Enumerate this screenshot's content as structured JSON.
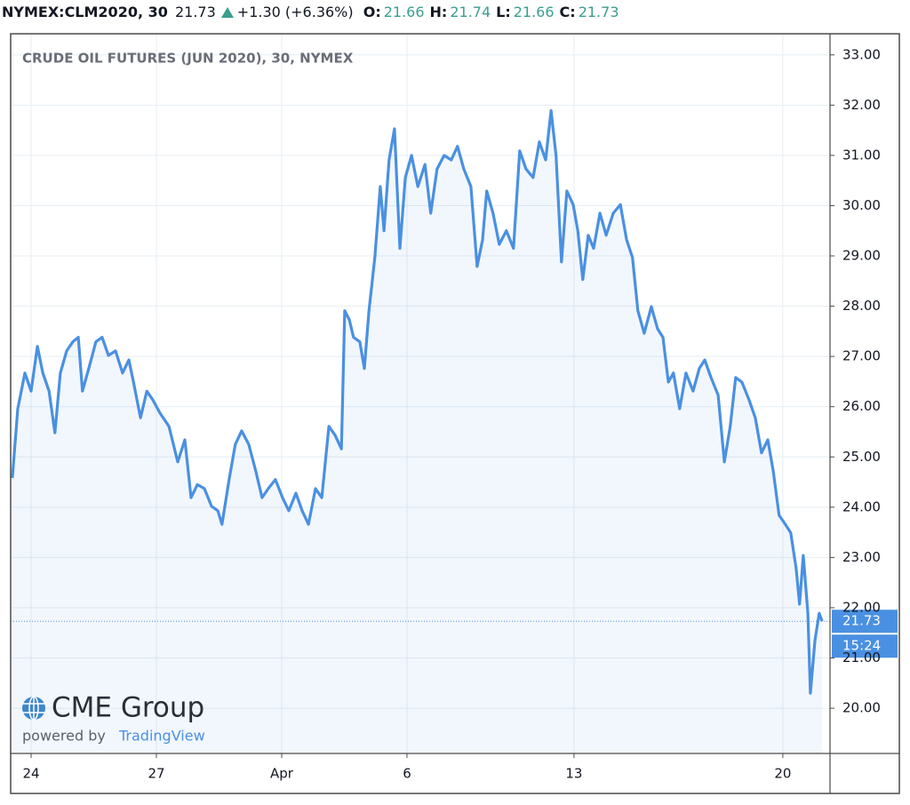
{
  "chart_data": {
    "type": "line",
    "symbol": "NYMEX:CLM2020, 30",
    "change": "+1.30 (+6.36%)",
    "ohlc": [
      {
        "label": "O:",
        "value": "21.66"
      },
      {
        "label": "H:",
        "value": "21.74"
      },
      {
        "label": "L:",
        "value": "21.66"
      },
      {
        "label": "C:",
        "value": "21.73"
      }
    ],
    "title": "CRUDE OIL FUTURES (JUN 2020), 30, NYMEX",
    "last_price": 21.73,
    "countdown": "15:24",
    "watermark": {
      "brand": "CME Group",
      "powered": "powered by",
      "provider": "TradingView"
    },
    "series": [
      {
        "color": "#4a90e2",
        "x": [
          -0.45,
          -0.32,
          -0.15,
          0,
          0.15,
          0.28,
          0.43,
          0.57,
          0.7,
          0.85,
          1.0,
          1.13,
          1.23,
          1.38,
          1.55,
          1.7,
          1.85,
          2.02,
          2.19,
          2.34,
          2.45,
          2.62,
          2.77,
          2.91,
          3.09,
          3.3,
          3.51,
          3.68,
          3.83,
          3.98,
          4.15,
          4.32,
          4.47,
          4.57,
          4.74,
          4.89,
          5.04,
          5.21,
          5.38,
          5.53,
          5.68,
          5.85,
          6.02,
          6.17,
          6.34,
          6.49,
          6.64,
          6.81,
          6.96,
          7.13,
          7.28,
          7.43,
          7.51,
          7.62,
          7.72,
          7.87,
          7.98,
          8.09,
          8.23,
          8.36,
          8.45,
          8.57,
          8.7,
          8.83,
          8.96,
          9.11,
          9.26,
          9.43,
          9.57,
          9.72,
          9.89,
          10.06,
          10.21,
          10.36,
          10.53,
          10.68,
          10.81,
          10.91,
          11.06,
          11.21,
          11.38,
          11.55,
          11.7,
          11.85,
          12.02,
          12.17,
          12.32,
          12.45,
          12.57,
          12.7,
          12.83,
          12.98,
          13.09,
          13.21,
          13.34,
          13.47,
          13.62,
          13.77,
          13.94,
          14.11,
          14.26,
          14.4,
          14.53,
          14.68,
          14.85,
          15.0,
          15.13,
          15.26,
          15.38,
          15.53,
          15.68,
          15.85,
          16.0,
          16.13,
          16.28,
          16.45,
          16.6,
          16.74,
          16.87,
          17.02,
          17.19,
          17.34,
          17.49,
          17.64,
          17.77,
          17.91,
          18.06,
          18.19,
          18.32,
          18.4,
          18.49,
          18.6,
          18.66,
          18.77,
          18.87,
          18.94
        ],
        "values": [
          24.58,
          25.96,
          26.67,
          26.31,
          27.2,
          26.67,
          26.31,
          25.48,
          26.67,
          27.11,
          27.29,
          27.38,
          26.31,
          26.76,
          27.29,
          27.38,
          27.02,
          27.11,
          26.67,
          26.93,
          26.49,
          25.78,
          26.31,
          26.14,
          25.87,
          25.61,
          24.9,
          25.34,
          24.19,
          24.45,
          24.37,
          24.02,
          23.93,
          23.66,
          24.55,
          25.25,
          25.52,
          25.25,
          24.72,
          24.19,
          24.37,
          24.55,
          24.19,
          23.93,
          24.28,
          23.93,
          23.66,
          24.37,
          24.19,
          25.61,
          25.43,
          25.16,
          27.91,
          27.73,
          27.38,
          27.29,
          26.76,
          27.91,
          28.97,
          30.38,
          29.5,
          30.91,
          31.53,
          29.15,
          30.56,
          31.0,
          30.38,
          30.82,
          29.85,
          30.73,
          31.0,
          30.91,
          31.18,
          30.73,
          30.38,
          28.79,
          29.32,
          30.29,
          29.85,
          29.23,
          29.5,
          29.15,
          31.09,
          30.73,
          30.56,
          31.27,
          30.91,
          31.89,
          31.0,
          28.88,
          30.29,
          30.02,
          29.5,
          28.53,
          29.41,
          29.15,
          29.85,
          29.41,
          29.85,
          30.02,
          29.32,
          28.97,
          27.91,
          27.46,
          27.99,
          27.55,
          27.38,
          26.49,
          26.67,
          25.96,
          26.67,
          26.31,
          26.76,
          26.93,
          26.58,
          26.23,
          24.9,
          25.61,
          26.58,
          26.49,
          26.14,
          25.78,
          25.08,
          25.34,
          24.72,
          23.84,
          23.66,
          23.49,
          22.78,
          22.07,
          23.04,
          21.89,
          20.3,
          21.36,
          21.89,
          21.73
        ]
      }
    ],
    "xlim": [
      -0.49,
      19.13
    ],
    "xticks": [
      {
        "value": 0,
        "label": "24"
      },
      {
        "value": 3,
        "label": "27"
      },
      {
        "value": 6,
        "label": "Apr"
      },
      {
        "value": 9,
        "label": "6"
      },
      {
        "value": 13,
        "label": "13"
      },
      {
        "value": 18,
        "label": "20"
      }
    ],
    "ylim": [
      19.1,
      33.42
    ],
    "yticks": [
      {
        "value": 20,
        "label": "20.00"
      },
      {
        "value": 21,
        "label": "21.00"
      },
      {
        "value": 22,
        "label": "22.00"
      },
      {
        "value": 23,
        "label": "23.00"
      },
      {
        "value": 24,
        "label": "24.00"
      },
      {
        "value": 25,
        "label": "25.00"
      },
      {
        "value": 26,
        "label": "26.00"
      },
      {
        "value": 27,
        "label": "27.00"
      },
      {
        "value": 28,
        "label": "28.00"
      },
      {
        "value": 29,
        "label": "29.00"
      },
      {
        "value": 30,
        "label": "30.00"
      },
      {
        "value": 31,
        "label": "31.00"
      },
      {
        "value": 32,
        "label": "32.00"
      },
      {
        "value": 33,
        "label": "33.00"
      }
    ],
    "grid": true
  }
}
